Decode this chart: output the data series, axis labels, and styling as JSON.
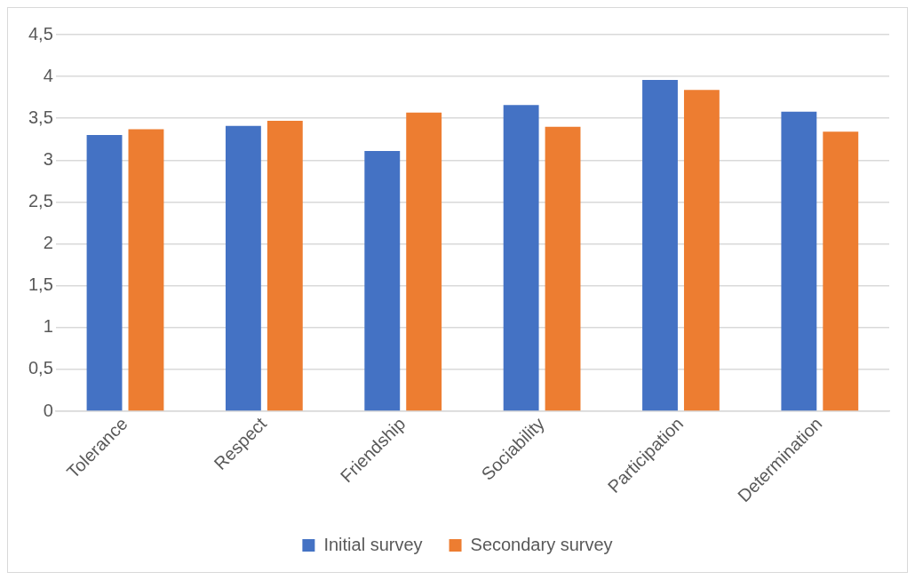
{
  "chart_data": {
    "type": "bar",
    "categories": [
      "Tolerance",
      "Respect",
      "Friendship",
      "Sociability",
      "Participation",
      "Determination"
    ],
    "series": [
      {
        "name": "Initial survey",
        "color": "#4472c4",
        "values": [
          3.3,
          3.41,
          3.11,
          3.66,
          3.96,
          3.58
        ]
      },
      {
        "name": "Secondary survey",
        "color": "#ed7d31",
        "values": [
          3.37,
          3.47,
          3.57,
          3.4,
          3.84,
          3.34
        ]
      }
    ],
    "ylim": [
      0,
      4.5
    ],
    "yticks": [
      0,
      {
        "value": 0.5,
        "label": "0,5"
      },
      1,
      {
        "value": 1.5,
        "label": "1,5"
      },
      2,
      {
        "value": 2.5,
        "label": "2,5"
      },
      3,
      {
        "value": 3.5,
        "label": "3,5"
      },
      4,
      {
        "value": 4.5,
        "label": "4,5"
      }
    ],
    "grid": "y",
    "legend": "bottom"
  }
}
